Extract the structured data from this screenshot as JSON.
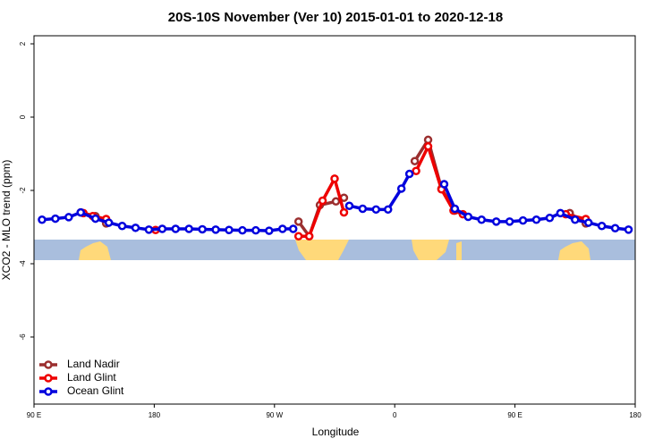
{
  "chart_data": {
    "type": "line",
    "title": "20S-10S November (Ver 10)   2015-01-01 to 2020-12-18",
    "xlabel": "Longitude",
    "ylabel": "XCO2 - MLO trend (ppm)",
    "xlim": [
      90,
      540
    ],
    "xticks": [
      {
        "value": 90,
        "label": "90 E"
      },
      180,
      {
        "value": 270,
        "label": "90 W"
      },
      {
        "value": 360,
        "label": "0"
      },
      {
        "value": 450,
        "label": "90 E"
      },
      {
        "value": 540,
        "label": "180"
      }
    ],
    "ylim": [
      -7.83,
      2.22
    ],
    "yticks": [
      2,
      0,
      -2,
      -4,
      -6
    ],
    "legend": "bottom-left",
    "series": [
      {
        "name": "Land Nadir",
        "color": "#9b2f2f",
        "x": [
          125,
          136,
          144,
          null,
          288,
          296,
          304,
          316,
          322,
          null,
          375,
          385,
          395,
          405,
          null,
          491,
          503
        ],
        "values": [
          -2.6,
          -2.7,
          -2.9,
          null,
          -2.85,
          -3.25,
          -2.4,
          -2.3,
          -2.2,
          null,
          -1.2,
          -0.62,
          -1.95,
          -2.55,
          null,
          -2.62,
          -2.9
        ]
      },
      {
        "name": "Land Glint",
        "color": "#ee0000",
        "x": [
          127,
          134,
          144,
          null,
          181,
          null,
          288,
          296,
          306,
          315,
          322,
          null,
          376,
          385,
          395,
          404,
          411,
          null,
          488,
          503
        ],
        "values": [
          -2.62,
          -2.7,
          -2.78,
          null,
          -3.08,
          null,
          -3.25,
          -3.25,
          -2.28,
          -1.68,
          -2.6,
          null,
          -1.47,
          -0.8,
          -1.97,
          -2.55,
          -2.65,
          null,
          -2.65,
          -2.78
        ]
      },
      {
        "name": "Ocean Glint",
        "color": "#0000dd",
        "x": [
          96,
          106,
          116,
          125,
          136,
          146,
          156,
          166,
          176,
          186,
          196,
          206,
          216,
          226,
          236,
          246,
          256,
          266,
          276,
          284,
          null,
          326,
          336,
          346,
          355,
          365,
          371,
          null,
          397,
          405,
          415,
          425,
          436,
          446,
          456,
          466,
          476,
          484,
          495,
          505,
          515,
          525,
          535
        ],
        "values": [
          -2.8,
          -2.77,
          -2.73,
          -2.6,
          -2.77,
          -2.88,
          -2.97,
          -3.02,
          -3.07,
          -3.05,
          -3.05,
          -3.05,
          -3.06,
          -3.07,
          -3.08,
          -3.09,
          -3.09,
          -3.1,
          -3.05,
          -3.05,
          null,
          -2.42,
          -2.5,
          -2.52,
          -2.52,
          -1.95,
          -1.55,
          null,
          -1.83,
          -2.5,
          -2.72,
          -2.8,
          -2.85,
          -2.85,
          -2.82,
          -2.8,
          -2.75,
          -2.62,
          -2.8,
          -2.88,
          -2.97,
          -3.03,
          -3.07
        ]
      }
    ]
  }
}
